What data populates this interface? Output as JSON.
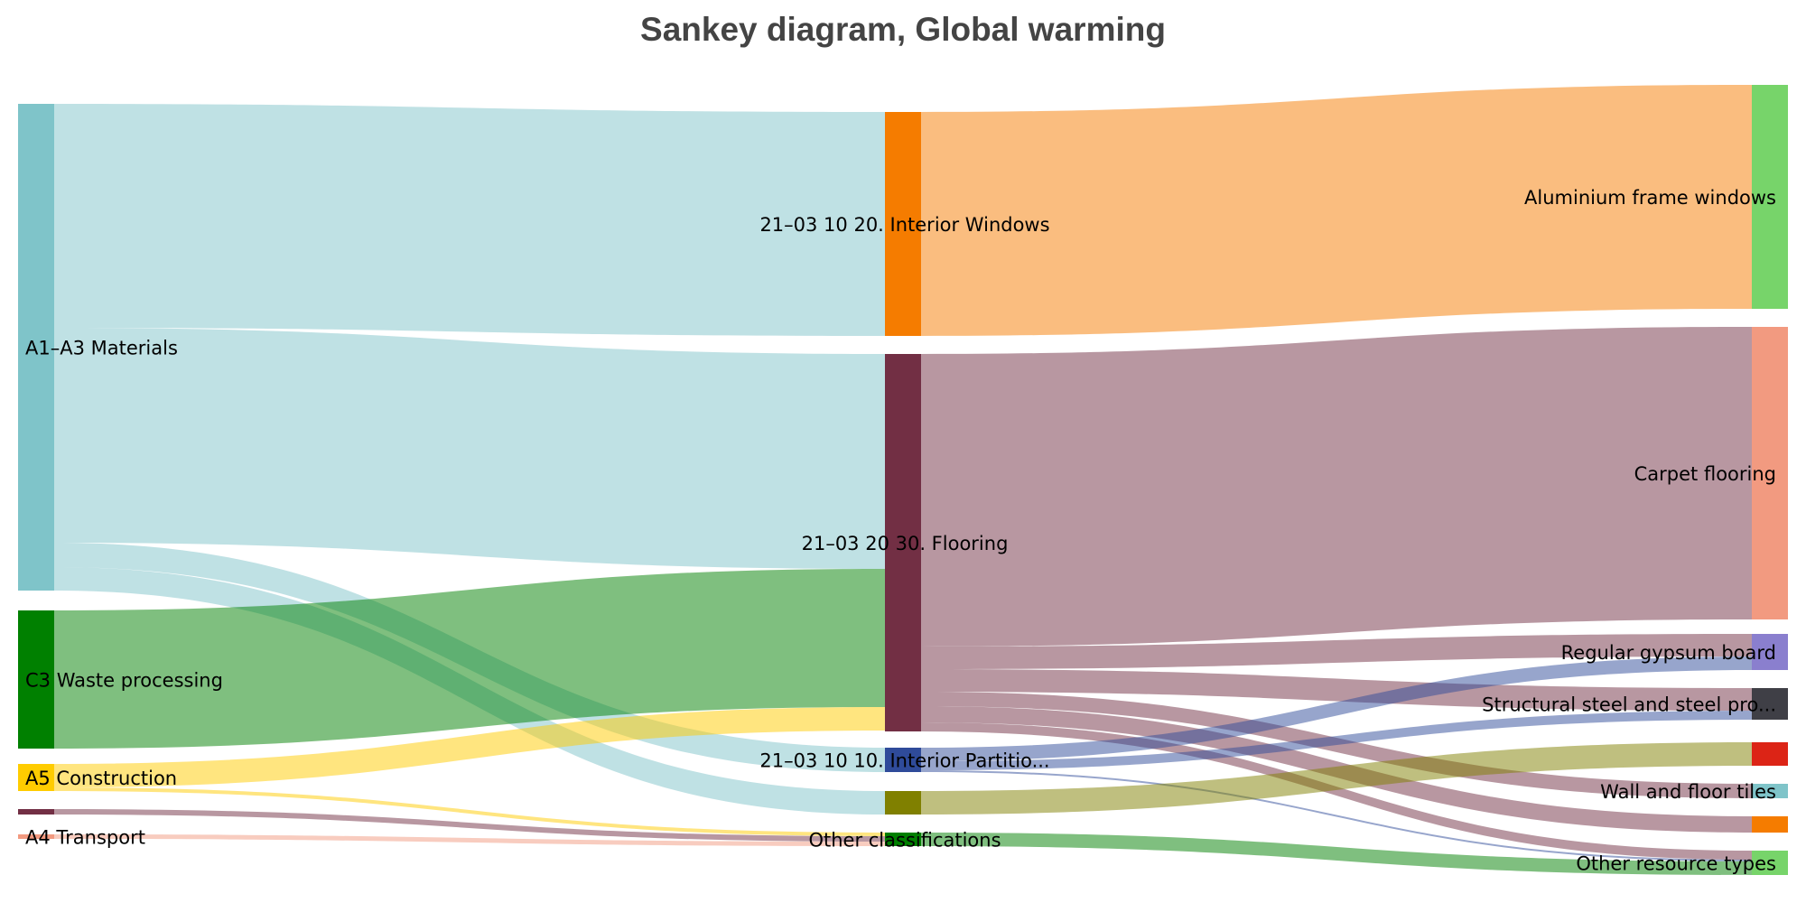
{
  "chart_data": {
    "type": "sankey",
    "title": "Sankey diagram, Global warming",
    "nodes": [
      {
        "name": "A1–A3 Materials",
        "color": "#7fc4c9"
      },
      {
        "name": "C3 Waste processing",
        "color": "#008000"
      },
      {
        "name": "A5 Construction",
        "color": "#ffcc00"
      },
      {
        "name": "",
        "color": "#722f44"
      },
      {
        "name": "A4 Transport",
        "color": "#f29a80"
      },
      {
        "name": "21–03 10 20. Interior Windows",
        "color": "#f57c00"
      },
      {
        "name": "21–03 20 30. Flooring",
        "color": "#722f44"
      },
      {
        "name": "21–03 10 10. Interior Partitio...",
        "color": "#2f4b9a"
      },
      {
        "name": "",
        "color": "#808000"
      },
      {
        "name": "Other classifications",
        "color": "#007f00"
      },
      {
        "name": "Aluminium frame windows",
        "color": "#77d46a"
      },
      {
        "name": "Carpet flooring",
        "color": "#f29a80"
      },
      {
        "name": "Regular gypsum board",
        "color": "#8a7fce"
      },
      {
        "name": "Structural steel and steel pro...",
        "color": "#3f3f46"
      },
      {
        "name": "",
        "color": "#dc2416"
      },
      {
        "name": "Wall and floor tiles",
        "color": "#7fc4c9"
      },
      {
        "name": "",
        "color": "#f57c00"
      },
      {
        "name": "Other resource types",
        "color": "#77d46a"
      }
    ],
    "links": [
      {
        "source": 0,
        "target": 5,
        "value": 248
      },
      {
        "source": 0,
        "target": 6,
        "value": 238
      },
      {
        "source": 0,
        "target": 7,
        "value": 27
      },
      {
        "source": 0,
        "target": 8,
        "value": 26
      },
      {
        "source": 1,
        "target": 6,
        "value": 153
      },
      {
        "source": 2,
        "target": 6,
        "value": 26
      },
      {
        "source": 2,
        "target": 9,
        "value": 4
      },
      {
        "source": 3,
        "target": 9,
        "value": 6
      },
      {
        "source": 4,
        "target": 9,
        "value": 5
      },
      {
        "source": 5,
        "target": 10,
        "value": 248
      },
      {
        "source": 6,
        "target": 11,
        "value": 324
      },
      {
        "source": 6,
        "target": 12,
        "value": 25
      },
      {
        "source": 6,
        "target": 13,
        "value": 25
      },
      {
        "source": 6,
        "target": 15,
        "value": 16
      },
      {
        "source": 6,
        "target": 16,
        "value": 18
      },
      {
        "source": 6,
        "target": 17,
        "value": 10
      },
      {
        "source": 7,
        "target": 12,
        "value": 15
      },
      {
        "source": 7,
        "target": 13,
        "value": 10
      },
      {
        "source": 7,
        "target": 17,
        "value": 2
      },
      {
        "source": 8,
        "target": 14,
        "value": 26
      },
      {
        "source": 9,
        "target": 17,
        "value": 15
      }
    ]
  }
}
